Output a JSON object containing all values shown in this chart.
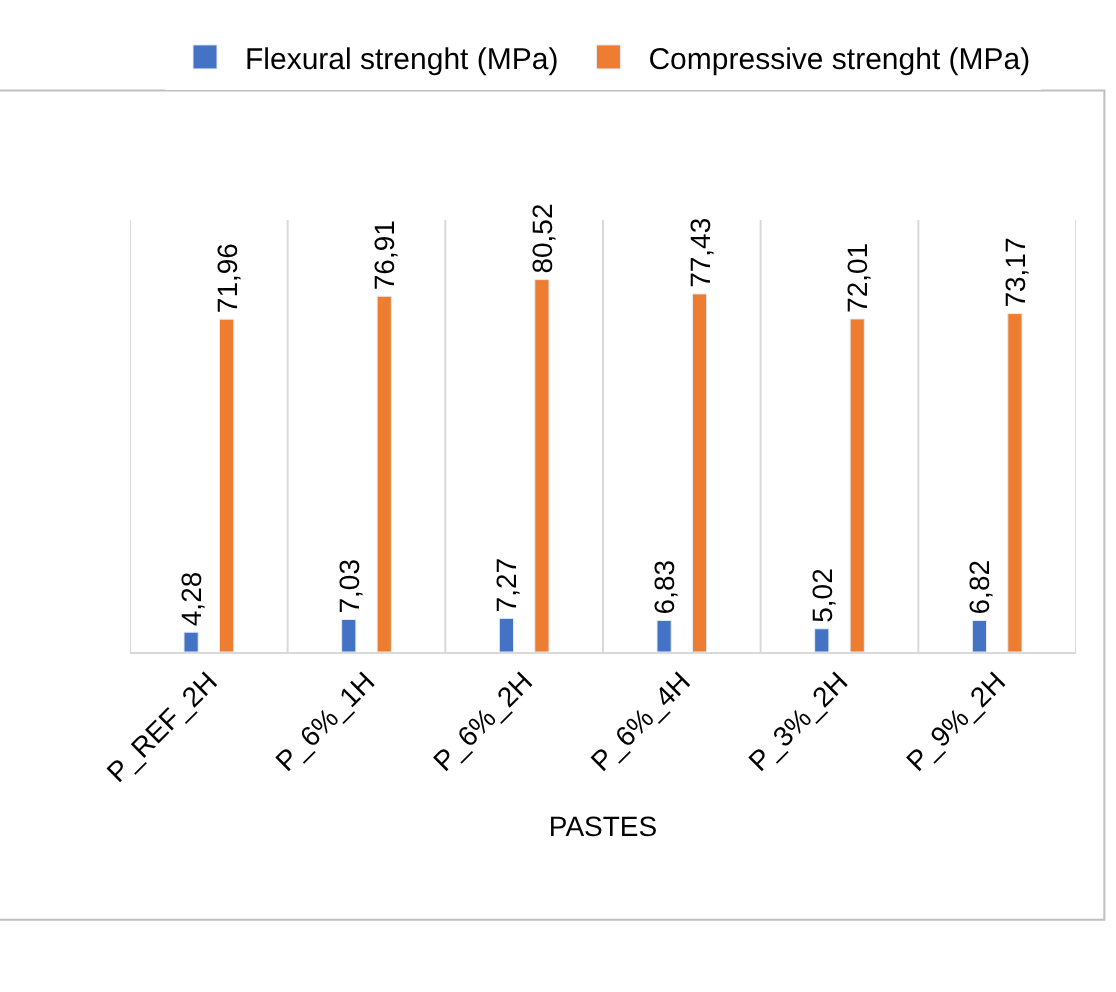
{
  "chart_data": {
    "type": "bar",
    "xlabel": "PASTES",
    "categories": [
      "P_REF_2H",
      "P_6%_1H",
      "P_6%_2H",
      "P_6%_4H",
      "P_3%_2H",
      "P_9%_2H"
    ],
    "series": [
      {
        "name": "Flexural strenght (MPa)",
        "color": "#4472c4",
        "values": [
          4.28,
          7.03,
          7.27,
          6.83,
          5.02,
          6.82
        ],
        "value_labels": [
          "4,28",
          "7,03",
          "7,27",
          "6,83",
          "5,02",
          "6,82"
        ]
      },
      {
        "name": "Compressive strenght (MPa)",
        "color": "#ed7d31",
        "values": [
          71.96,
          76.91,
          80.52,
          77.43,
          72.01,
          73.17
        ],
        "value_labels": [
          "71,96",
          "76,91",
          "80,52",
          "77,43",
          "72,01",
          "73,17"
        ]
      }
    ],
    "grid": "x",
    "legend": "top",
    "tick_labels": "x"
  }
}
